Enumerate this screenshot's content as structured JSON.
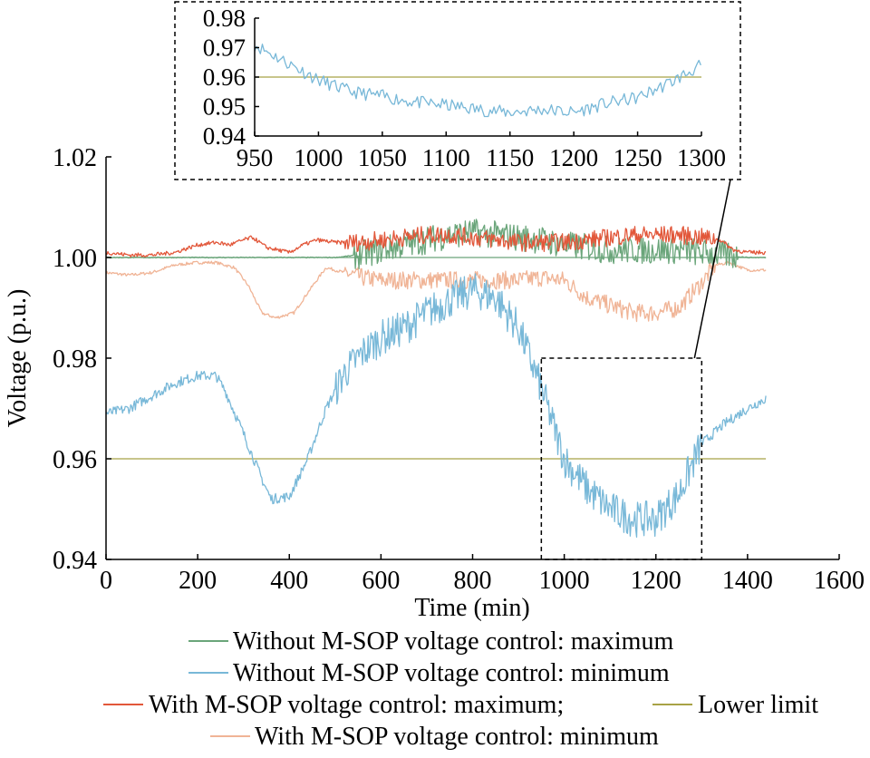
{
  "chart_data": {
    "type": "line",
    "xlabel": "Time (min)",
    "ylabel": "Voltage (p.u.)",
    "xlim": [
      0,
      1600
    ],
    "ylim": [
      0.94,
      1.02
    ],
    "xticks": [
      0,
      200,
      400,
      600,
      800,
      1000,
      1200,
      1400,
      1600
    ],
    "yticks": [
      0.94,
      0.96,
      0.98,
      1.0,
      1.02
    ],
    "xtick_labels": [
      "0",
      "200",
      "400",
      "600",
      "800",
      "1000",
      "1200",
      "1400",
      "1600"
    ],
    "ytick_labels": [
      "0.94",
      "0.96",
      "0.98",
      "1.00",
      "1.02"
    ],
    "grid": false,
    "legend_placement": "bottom",
    "series": [
      {
        "name": "Without M-SOP voltage control: maximum",
        "color": "#6aa57a",
        "x": [
          0,
          100,
          200,
          300,
          400,
          500,
          550,
          600,
          650,
          700,
          750,
          800,
          850,
          900,
          950,
          1000,
          1050,
          1100,
          1150,
          1200,
          1250,
          1300,
          1350,
          1400,
          1440
        ],
        "y": [
          1.0,
          1.0,
          1.0,
          1.0,
          1.0,
          1.0,
          1.0005,
          1.0015,
          1.0025,
          1.0035,
          1.0045,
          1.005,
          1.0045,
          1.004,
          1.0035,
          1.0025,
          1.002,
          1.0015,
          1.0015,
          1.0015,
          1.0015,
          1.001,
          1.0005,
          1.0,
          1.0
        ]
      },
      {
        "name": "Without M-SOP voltage control: minimum",
        "color": "#78b8d8",
        "x": [
          0,
          50,
          100,
          150,
          200,
          240,
          260,
          300,
          340,
          360,
          400,
          440,
          480,
          520,
          560,
          600,
          650,
          700,
          750,
          800,
          850,
          900,
          950,
          1000,
          1050,
          1100,
          1150,
          1200,
          1250,
          1300,
          1350,
          1400,
          1440
        ],
        "y": [
          0.969,
          0.97,
          0.9725,
          0.975,
          0.9765,
          0.9765,
          0.9735,
          0.965,
          0.956,
          0.952,
          0.9525,
          0.96,
          0.97,
          0.977,
          0.981,
          0.984,
          0.986,
          0.989,
          0.9915,
          0.9935,
          0.992,
          0.986,
          0.974,
          0.96,
          0.954,
          0.95,
          0.948,
          0.948,
          0.953,
          0.963,
          0.967,
          0.97,
          0.972
        ]
      },
      {
        "name": "With M-SOP voltage control: maximum;",
        "color": "#e2573a",
        "x": [
          0,
          50,
          100,
          150,
          200,
          240,
          270,
          300,
          320,
          350,
          400,
          430,
          460,
          500,
          550,
          600,
          650,
          700,
          750,
          800,
          850,
          900,
          950,
          1000,
          1050,
          1100,
          1150,
          1200,
          1250,
          1300,
          1340,
          1370,
          1400,
          1440
        ],
        "y": [
          1.001,
          1.0005,
          1.0005,
          1.001,
          1.0025,
          1.003,
          1.0025,
          1.0035,
          1.004,
          1.002,
          1.001,
          1.0025,
          1.0035,
          1.003,
          1.003,
          1.0035,
          1.004,
          1.0045,
          1.0045,
          1.004,
          1.0035,
          1.003,
          1.003,
          1.003,
          1.0035,
          1.004,
          1.0045,
          1.0045,
          1.0045,
          1.004,
          1.0035,
          1.0015,
          1.001,
          1.001
        ]
      },
      {
        "name": "With M-SOP voltage control: minimum",
        "color": "#f0b496",
        "x": [
          0,
          50,
          100,
          150,
          200,
          240,
          280,
          310,
          340,
          370,
          410,
          440,
          480,
          520,
          560,
          600,
          650,
          700,
          750,
          800,
          850,
          900,
          950,
          1000,
          1050,
          1100,
          1150,
          1200,
          1250,
          1300,
          1330,
          1360,
          1400,
          1440
        ],
        "y": [
          0.997,
          0.9965,
          0.997,
          0.9985,
          0.999,
          0.999,
          0.998,
          0.9945,
          0.989,
          0.988,
          0.989,
          0.993,
          0.998,
          0.997,
          0.996,
          0.9955,
          0.9955,
          0.9955,
          0.9955,
          0.9955,
          0.9955,
          0.9955,
          0.996,
          0.9955,
          0.992,
          0.9905,
          0.989,
          0.989,
          0.99,
          0.995,
          0.9985,
          0.999,
          0.9975,
          0.9975
        ]
      },
      {
        "name": "Lower limit",
        "color": "#a8a246",
        "x": [
          0,
          1440
        ],
        "y": [
          0.96,
          0.96
        ]
      }
    ],
    "reference_lines": [
      {
        "y": 1.0,
        "color": "#6aa57a"
      }
    ],
    "zoom_region": {
      "x": [
        950,
        1300
      ],
      "y": [
        0.94,
        0.98
      ]
    },
    "inset": {
      "xlim": [
        950,
        1300
      ],
      "ylim": [
        0.94,
        0.98
      ],
      "xticks": [
        950,
        1000,
        1050,
        1100,
        1150,
        1200,
        1250,
        1300
      ],
      "yticks": [
        0.94,
        0.95,
        0.96,
        0.97,
        0.98
      ],
      "xtick_labels": [
        "950",
        "1000",
        "1050",
        "1100",
        "1150",
        "1200",
        "1250",
        "1300"
      ],
      "ytick_labels": [
        "0.94",
        "0.95",
        "0.96",
        "0.97",
        "0.98"
      ],
      "series": [
        {
          "name": "Without M-SOP voltage control: minimum",
          "color": "#78b8d8",
          "x": [
            950,
            975,
            1000,
            1025,
            1050,
            1075,
            1100,
            1125,
            1150,
            1175,
            1200,
            1225,
            1250,
            1275,
            1300
          ],
          "y": [
            0.971,
            0.965,
            0.959,
            0.955,
            0.9535,
            0.9515,
            0.9505,
            0.949,
            0.948,
            0.949,
            0.948,
            0.951,
            0.953,
            0.958,
            0.964
          ]
        },
        {
          "name": "Lower limit",
          "color": "#a8a246",
          "x": [
            950,
            1300
          ],
          "y": [
            0.96,
            0.96
          ]
        }
      ]
    }
  }
}
